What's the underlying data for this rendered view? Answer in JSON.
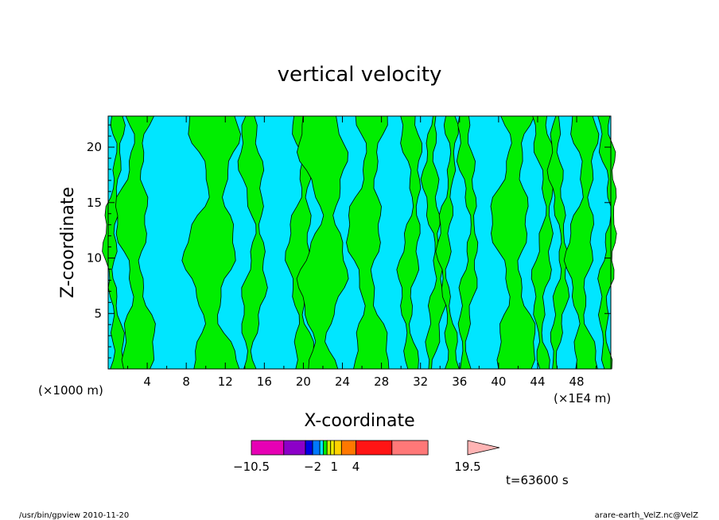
{
  "chart_data": {
    "type": "heatmap",
    "title": "vertical velocity",
    "xlabel": "X-coordinate",
    "ylabel": "Z-coordinate",
    "x_scale_left": "(×1000 m)",
    "x_scale_right": "(×1E4 m)",
    "xlim": [
      0,
      51.5
    ],
    "ylim": [
      0,
      22.8
    ],
    "x_ticks": [
      "4",
      "8",
      "12",
      "16",
      "20",
      "24",
      "28",
      "32",
      "36",
      "40",
      "44",
      "48"
    ],
    "x_tick_values": [
      4,
      8,
      12,
      16,
      20,
      24,
      28,
      32,
      36,
      40,
      44,
      48
    ],
    "y_ticks": [
      "5",
      "10",
      "15",
      "20"
    ],
    "y_tick_values": [
      5,
      10,
      15,
      20
    ],
    "contour_levels": [
      "negative",
      "positive"
    ],
    "fill_colors": {
      "negative": "#00e6ff",
      "positive": "#00ee00"
    },
    "colorbar": {
      "colors": [
        "#e600b4",
        "#8c00c8",
        "#0000e6",
        "#0078ff",
        "#00e6ff",
        "#00ee00",
        "#c8f000",
        "#f0f000",
        "#ffd200",
        "#ff7800",
        "#ff1414",
        "#ff7878",
        "#ffb4b4"
      ],
      "labels": [
        "−10.5",
        "−2",
        "1",
        "4",
        "19.5"
      ],
      "label_values": [
        -10.5,
        -2,
        1,
        4,
        19.5
      ]
    },
    "time_label": "t=63600 s"
  },
  "footer": {
    "left": "/usr/bin/gpview   2010-11-20",
    "right": "arare-earth_VelZ.nc@VelZ"
  }
}
